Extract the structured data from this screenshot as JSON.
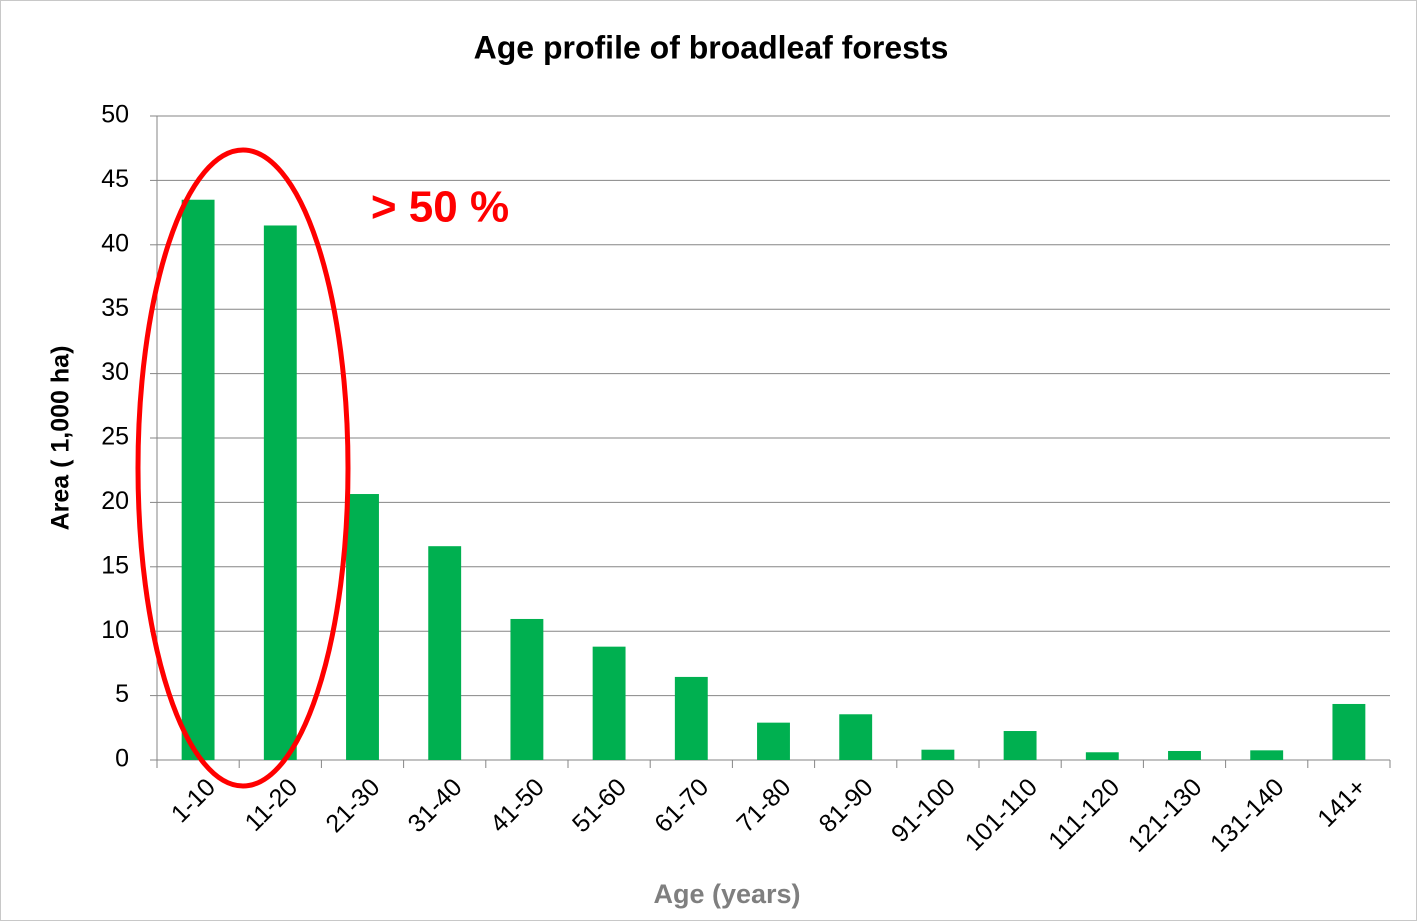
{
  "chart_data": {
    "type": "bar",
    "title": "Age profile of broadleaf forests",
    "x_label": "Age (years)",
    "y_label": "Area ( 1,000 ha)",
    "annotation": "> 50 %",
    "categories": [
      "1-10",
      "11-20",
      "21-30",
      "31-40",
      "41-50",
      "51-60",
      "61-70",
      "71-80",
      "81-90",
      "91-100",
      "101-110",
      "111-120",
      "121-130",
      "131-140",
      "141+"
    ],
    "values": [
      43.5,
      41.5,
      20.65,
      16.6,
      10.95,
      8.8,
      6.45,
      2.9,
      3.55,
      0.8,
      2.25,
      0.6,
      0.7,
      0.75,
      4.35
    ],
    "color": "#00b050",
    "ylim": [
      0,
      50
    ],
    "yticks": [
      0,
      5,
      10,
      15,
      20,
      25,
      30,
      35,
      40,
      45,
      50
    ],
    "grid": true
  }
}
